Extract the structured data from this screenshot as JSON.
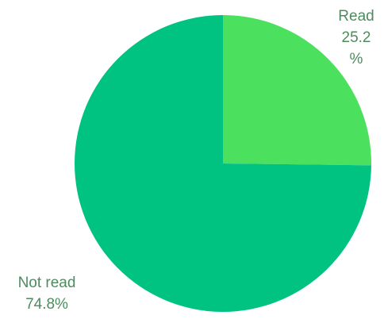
{
  "chart_data": {
    "type": "pie",
    "title": "",
    "slices": [
      {
        "label": "Read",
        "value": 25.2,
        "label_lines": [
          "Read",
          "25.2",
          "%"
        ],
        "color": "#4be05d"
      },
      {
        "label": "Not read",
        "value": 74.8,
        "label_lines": [
          "Not read",
          "74.8%"
        ],
        "color": "#00c382"
      }
    ],
    "start_angle": "12 o'clock",
    "direction": "clockwise",
    "label_color": "#4e8b5f",
    "legend": "none"
  }
}
